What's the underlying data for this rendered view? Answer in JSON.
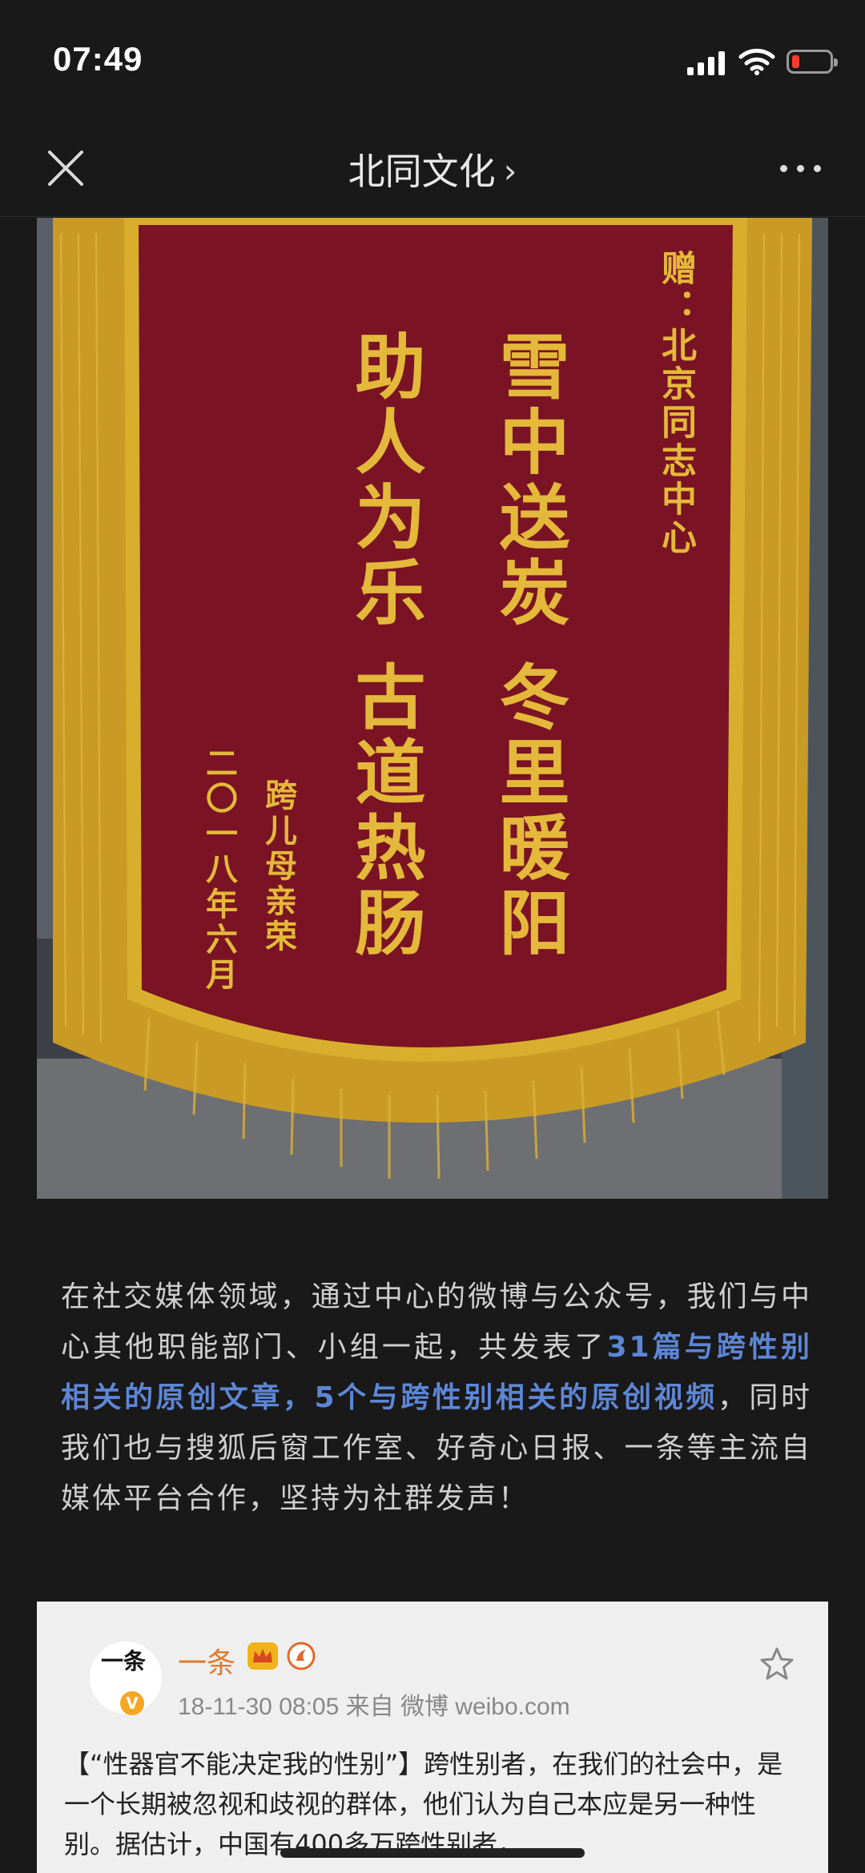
{
  "status_bar": {
    "time": "07:49"
  },
  "nav": {
    "title": "北同文化",
    "chevron": "›"
  },
  "banner": {
    "donor_line": "赠：北京同志中心",
    "line1": "雪中送炭 冬里暖阳",
    "line2": "助人为乐 古道热肠",
    "signature": "跨儿母亲荣",
    "date": "二〇一八年六月"
  },
  "article": {
    "p1_a": "在社交媒体领域，通过中心的微博与公众号，我们与中心其他职能部门、小组一起，共发表了",
    "p1_hl": "31篇与跨性别相关的原创文章，5个与跨性别相关的原创视频",
    "p1_b": "，同时我们也与搜狐后窗工作室、好奇心日报、一条等主流自媒体平台合作，坚持为社群发声！"
  },
  "weibo_card": {
    "avatar_text": "一条",
    "username": "一条",
    "meta": "18-11-30 08:05  来自 微博 weibo.com",
    "body": "【“性器官不能决定我的性别”】跨性别者，在我们的社会中，是一个长期被忽视和歧视的群体，他们认为自己本应是另一种性别。据估计，中国有400多万跨性别者，"
  },
  "colors": {
    "accent_link": "#5d86d6",
    "banner_red": "#7a1424",
    "gold": "#d9ae2c",
    "username": "#e07a2e"
  }
}
